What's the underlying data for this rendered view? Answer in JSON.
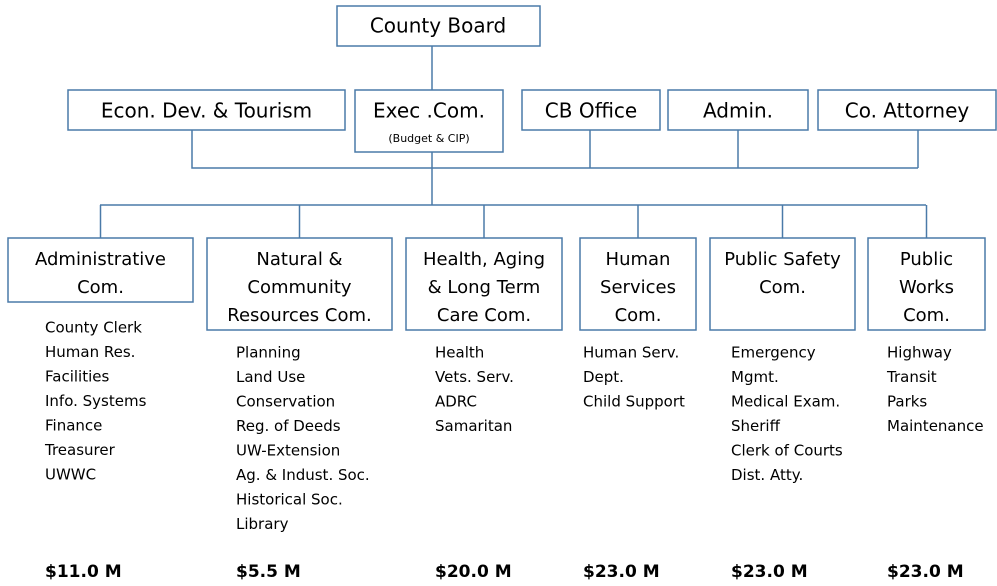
{
  "top": {
    "label": "County Board"
  },
  "second_row": [
    {
      "label": "Econ. Dev.  & Tourism"
    },
    {
      "label": "Exec .Com.",
      "sublabel": "(Budget & CIP)"
    },
    {
      "label": "CB Office"
    },
    {
      "label": "Admin."
    },
    {
      "label": "Co. Attorney"
    }
  ],
  "committees": [
    {
      "name_lines": [
        "Administrative",
        "Com."
      ],
      "items": [
        "County Clerk",
        "Human Res.",
        "Facilities",
        "Info. Systems",
        "Finance",
        "Treasurer",
        "UWWC"
      ],
      "budget": "$11.0 M"
    },
    {
      "name_lines": [
        "Natural &",
        "Community",
        "Resources Com."
      ],
      "items": [
        "Planning",
        "Land Use",
        "Conservation",
        "Reg. of Deeds",
        "UW-Extension",
        "Ag. & Indust. Soc.",
        "Historical Soc.",
        "Library"
      ],
      "budget": "$5.5 M"
    },
    {
      "name_lines": [
        "Health, Aging",
        "& Long Term",
        "Care Com."
      ],
      "items": [
        "Health",
        "Vets. Serv.",
        "ADRC",
        "Samaritan"
      ],
      "budget": "$20.0 M"
    },
    {
      "name_lines": [
        "Human",
        "Services",
        "Com."
      ],
      "items": [
        "Human Serv.",
        "Dept.",
        "Child Support"
      ],
      "budget": "$23.0 M"
    },
    {
      "name_lines": [
        "Public Safety",
        "Com."
      ],
      "items": [
        "Emergency",
        "Mgmt.",
        "Medical Exam.",
        "Sheriff",
        "Clerk of Courts",
        "Dist. Atty."
      ],
      "budget": "$23.0 M"
    },
    {
      "name_lines": [
        "Public",
        "Works",
        "Com."
      ],
      "items": [
        "Highway",
        "Transit",
        "Parks",
        "Maintenance"
      ],
      "budget": "$23.0 M"
    }
  ]
}
